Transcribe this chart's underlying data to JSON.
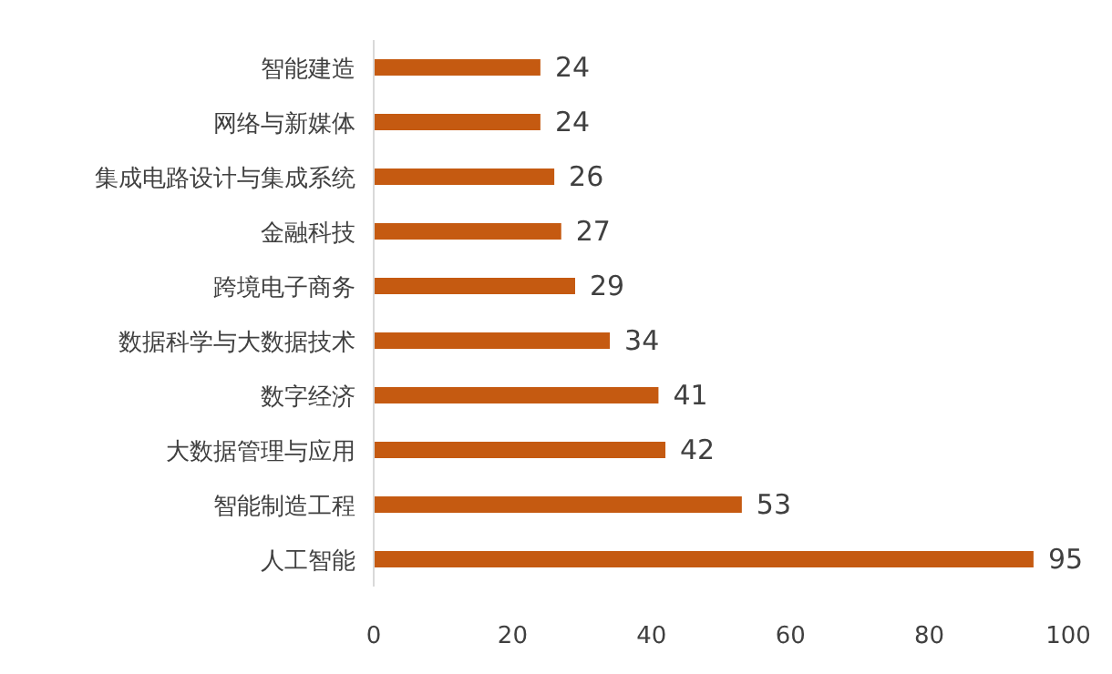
{
  "chart_data": {
    "type": "bar",
    "orientation": "horizontal",
    "categories": [
      "智能建造",
      "网络与新媒体",
      "集成电路设计与集成系统",
      "金融科技",
      "跨境电子商务",
      "数据科学与大数据技术",
      "数字经济",
      "大数据管理与应用",
      "智能制造工程",
      "人工智能"
    ],
    "values": [
      24,
      24,
      26,
      27,
      29,
      34,
      41,
      42,
      53,
      95
    ],
    "color": "#c55a11",
    "xlim": [
      0,
      100
    ],
    "xticks": [
      0,
      20,
      40,
      60,
      80,
      100
    ],
    "data_labels": true,
    "grid": false
  }
}
